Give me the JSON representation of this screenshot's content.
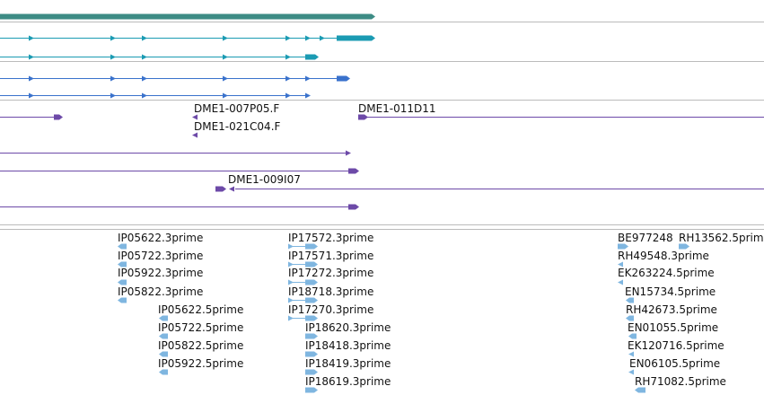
{
  "viewer": {
    "colors": {
      "gene_model": "#3d8c85",
      "transcript_teal": "#1b9bb3",
      "transcript_blue": "#3a72cc",
      "clone_end": "#6d4aa8",
      "est": "#7fb6e0",
      "separator": "#bbbbbb"
    },
    "clone_labels": [
      "DME1-007P05.F",
      "DME1-011D11",
      "DME1-021C04.F",
      "DME1-009I07"
    ],
    "est_labels": [
      "IP05622.3prime",
      "IP05722.3prime",
      "IP05922.3prime",
      "IP05822.3prime",
      "IP05622.5prime",
      "IP05722.5prime",
      "IP05822.5prime",
      "IP05922.5prime",
      "IP17572.3prime",
      "IP17571.3prime",
      "IP17272.3prime",
      "IP18718.3prime",
      "IP17270.3prime",
      "IP18620.3prime",
      "IP18418.3prime",
      "IP18419.3prime",
      "IP18619.3prime",
      "BE977248",
      "RH13562.5prime",
      "RH49548.3prime",
      "EK263224.5prime",
      "EN15734.5prime",
      "RH42673.5prime",
      "EN01055.5prime",
      "EK120716.5prime",
      "EN06105.5prime",
      "RH71082.5prime"
    ]
  }
}
